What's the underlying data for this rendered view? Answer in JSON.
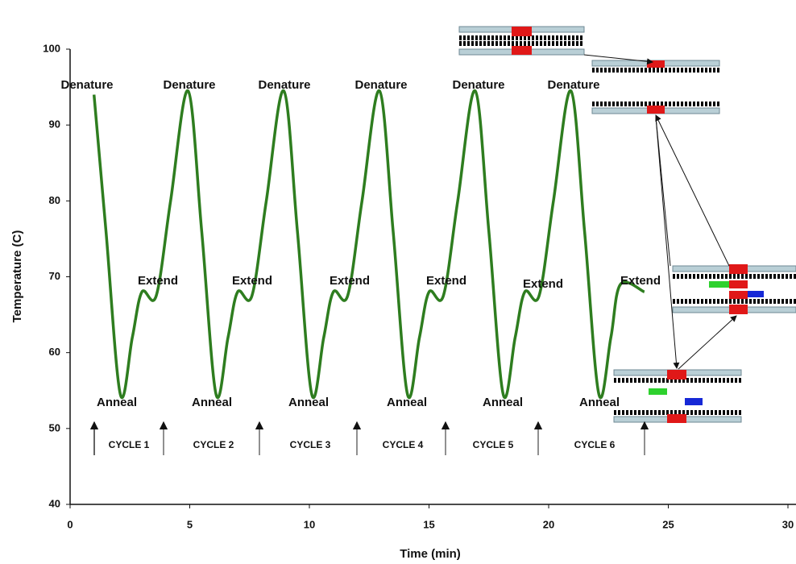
{
  "chart_data": {
    "type": "line",
    "x_label": "Time (min)",
    "y_label": "Temperature (C)",
    "xlim": [
      0,
      30
    ],
    "ylim": [
      40,
      100
    ],
    "xticks": [
      0,
      5,
      10,
      15,
      20,
      25,
      30
    ],
    "yticks": [
      40,
      50,
      60,
      70,
      80,
      90,
      100
    ],
    "series": [
      {
        "color": "#2e7d1f",
        "x": [
          1.0,
          1.5,
          2.1,
          2.6,
          3.0,
          3.6,
          4.2,
          4.93,
          5.5,
          6.1,
          6.6,
          7.0,
          7.6,
          8.2,
          8.93,
          9.5,
          10.1,
          10.6,
          11.0,
          11.6,
          12.2,
          12.93,
          13.5,
          14.1,
          14.6,
          15.0,
          15.6,
          16.2,
          16.93,
          17.5,
          18.1,
          18.6,
          19.0,
          19.6,
          20.2,
          20.93,
          21.5,
          22.1,
          22.6,
          23.0,
          24.0
        ],
        "values": [
          94,
          76,
          54.5,
          62,
          68,
          67.5,
          80,
          94.5,
          76,
          54.5,
          62,
          68,
          67.5,
          80,
          94.5,
          76,
          54.5,
          62,
          68,
          67.5,
          80,
          94.5,
          76,
          54.5,
          62,
          68,
          67.5,
          80,
          94.5,
          76,
          54.5,
          62,
          68,
          67.5,
          80,
          94.5,
          76,
          54.5,
          62,
          69,
          68
        ]
      }
    ],
    "annotations": {
      "denature": [
        "Denature",
        "Denature",
        "Denature",
        "Denature",
        "Denature",
        "Denature"
      ],
      "extend": [
        "Extend",
        "Extend",
        "Extend",
        "Extend",
        "Extend",
        "Extend"
      ],
      "anneal": [
        "Anneal",
        "Anneal",
        "Anneal",
        "Anneal",
        "Anneal",
        "Anneal"
      ],
      "cycles": [
        "CYCLE 1",
        "CYCLE 2",
        "CYCLE 3",
        "CYCLE 4",
        "CYCLE 5",
        "CYCLE 6"
      ]
    }
  }
}
